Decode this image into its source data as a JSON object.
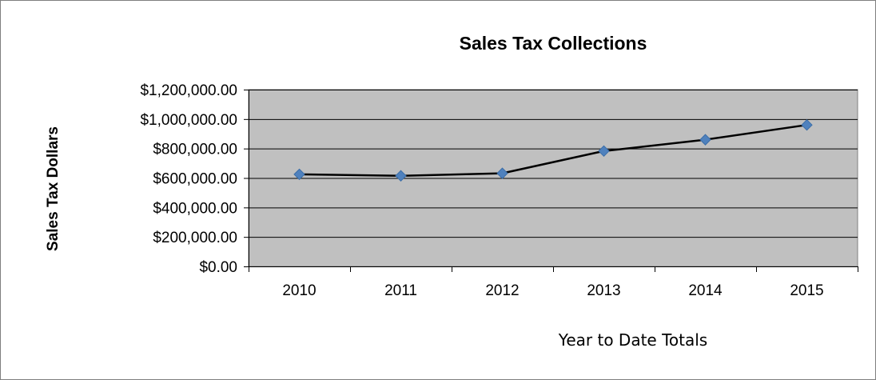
{
  "chart_data": {
    "type": "line",
    "title": "Sales Tax Collections",
    "xlabel": "Year to Date Totals",
    "ylabel": "Sales Tax Dollars",
    "categories": [
      "2010",
      "2011",
      "2012",
      "2013",
      "2014",
      "2015"
    ],
    "series": [
      {
        "values": [
          625000,
          615000,
          632000,
          783000,
          860000,
          960000
        ]
      }
    ],
    "ylim": [
      0,
      1200000
    ],
    "yticks": [
      0,
      200000,
      400000,
      600000,
      800000,
      1000000,
      1200000
    ],
    "ytick_labels": [
      "$0.00",
      "$200,000.00",
      "$400,000.00",
      "$600,000.00",
      "$800,000.00",
      "$1,000,000.00",
      "$1,200,000.00"
    ],
    "grid": true,
    "legend": "none",
    "colors": {
      "plot_background": "#c0c0c0",
      "line": "#000000",
      "marker": "#4f81bd",
      "gridline": "#000000"
    }
  }
}
